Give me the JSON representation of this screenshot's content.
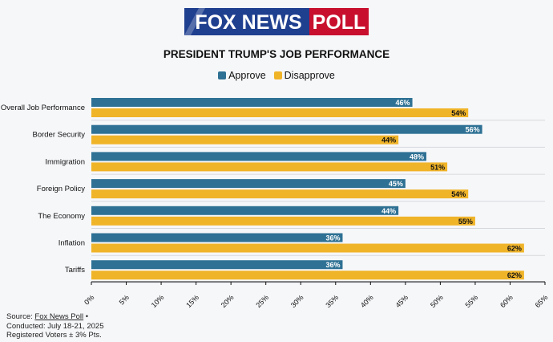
{
  "logo": {
    "left_text": "FOX NEWS",
    "right_text": "POLL"
  },
  "colors": {
    "approve": "#2e7194",
    "disapprove": "#f0b429",
    "logo_blue": "#1f3f8f",
    "logo_red": "#c8102e"
  },
  "legend": {
    "approve_label": "Approve",
    "disapprove_label": "Disapprove"
  },
  "source": {
    "prefix": "Source: ",
    "link_text": "Fox News Poll",
    "suffix": " •",
    "conducted": "Conducted: July 18-21, 2025",
    "voters": "Registered Voters ± 3% Pts."
  },
  "chart_data": {
    "type": "bar",
    "orientation": "horizontal",
    "title": "PRESIDENT TRUMP'S JOB PERFORMANCE",
    "categories": [
      "Overall Job Performance",
      "Border Security",
      "Immigration",
      "Foreign Policy",
      "The Economy",
      "Inflation",
      "Tariffs"
    ],
    "series": [
      {
        "name": "Approve",
        "values": [
          46,
          56,
          48,
          45,
          44,
          36,
          36
        ]
      },
      {
        "name": "Disapprove",
        "values": [
          54,
          44,
          51,
          54,
          55,
          62,
          62
        ]
      }
    ],
    "xlim": [
      0,
      65
    ],
    "xticks": [
      0,
      5,
      10,
      15,
      20,
      25,
      30,
      35,
      40,
      45,
      50,
      55,
      60,
      65
    ],
    "tick_suffix": "%",
    "legend_position": "top-center",
    "grid": false
  }
}
